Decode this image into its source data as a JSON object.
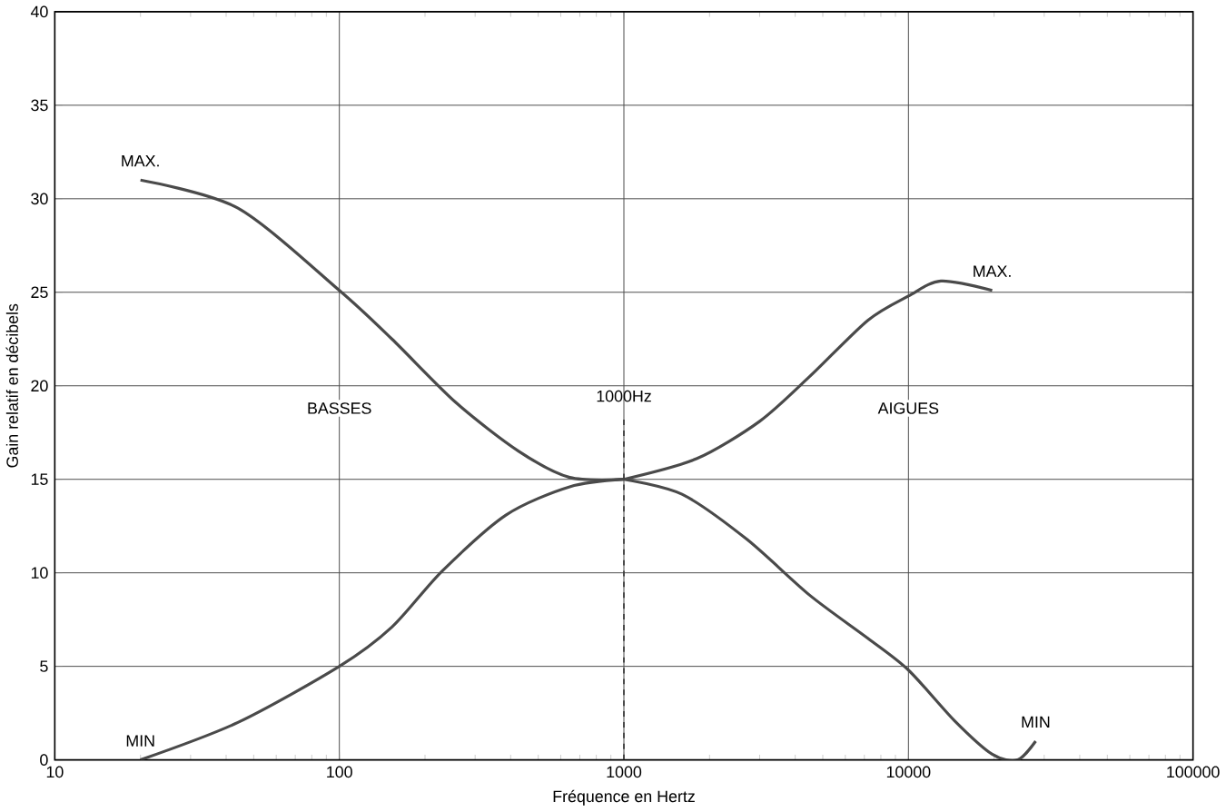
{
  "chart_data": {
    "type": "line",
    "xlabel": "Fréquence en Hertz",
    "ylabel": "Gain relatif en décibels",
    "log": "x",
    "xlim": [
      10,
      100000
    ],
    "ylim": [
      0,
      40
    ],
    "xticks": [
      10,
      100,
      1000,
      10000,
      100000
    ],
    "yticks": [
      0,
      5,
      10,
      15,
      20,
      25,
      30,
      35,
      40
    ],
    "grid": true,
    "marker": "none",
    "line_style": "solid",
    "series": [
      {
        "name": "MAX.",
        "color": "#4a4a4a",
        "x": [
          20,
          44,
          100,
          153,
          257,
          427,
          645,
          1000
        ],
        "values": [
          31,
          29.5,
          25.1,
          22.5,
          19.1,
          16.5,
          15.1,
          15
        ]
      },
      {
        "name": "MIN",
        "color": "#4a4a4a",
        "x": [
          20,
          44,
          100,
          153,
          230,
          386,
          645,
          1000
        ],
        "values": [
          0,
          2,
          5,
          7.1,
          10.1,
          13.1,
          14.6,
          15
        ]
      },
      {
        "name": "MAX.",
        "color": "#4a4a4a",
        "x": [
          1000,
          1800,
          3000,
          4500,
          7200,
          10000,
          13000,
          19700
        ],
        "values": [
          15,
          16.1,
          18.1,
          20.5,
          23.5,
          24.8,
          25.6,
          25.1
        ]
      },
      {
        "name": "MIN",
        "color": "#4a4a4a",
        "x": [
          1000,
          1600,
          2700,
          4500,
          7200,
          10000,
          14500,
          19700,
          24200,
          28000
        ],
        "values": [
          15,
          14.2,
          11.8,
          8.8,
          6.5,
          4.8,
          2.1,
          0.3,
          0,
          1
        ]
      }
    ],
    "ref_lines": [
      {
        "axis": "x",
        "value": 1000,
        "label": "1000Hz",
        "line_style": "dashed"
      }
    ],
    "annotations": [
      "BASSES",
      "AIGUES"
    ]
  }
}
